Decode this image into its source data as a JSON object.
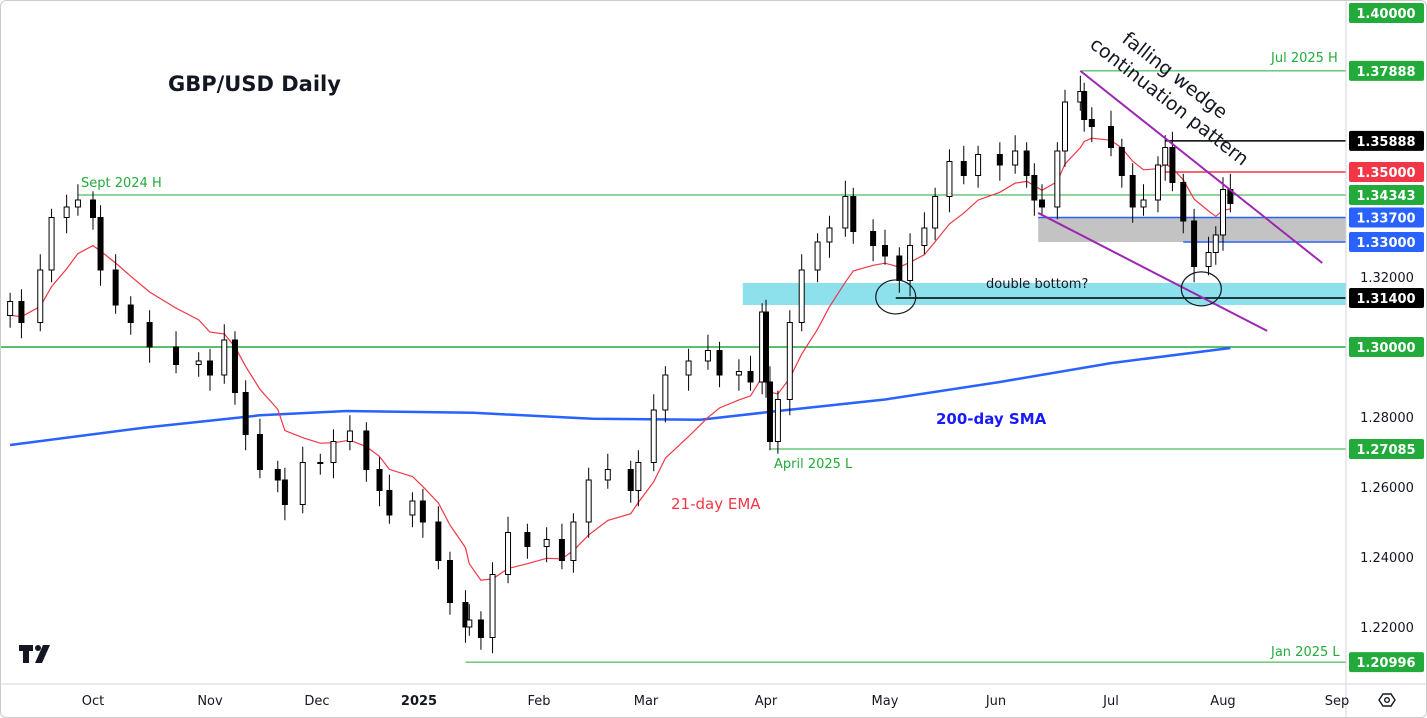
{
  "chart_data": {
    "type": "candlestick",
    "title": "GBP/USD Daily",
    "y_scale": "linear",
    "ylim": [
      1.2,
      1.4
    ],
    "grid": false,
    "y_ticks": [
      "1.32000",
      "1.28000",
      "1.26000",
      "1.24000",
      "1.22000"
    ],
    "x_ticks": [
      {
        "label": "Oct",
        "date": "2024-10-01"
      },
      {
        "label": "Nov",
        "date": "2024-11-01"
      },
      {
        "label": "Dec",
        "date": "2024-12-01"
      },
      {
        "label": "2025",
        "date": "2025-01-01",
        "bold": true
      },
      {
        "label": "Feb",
        "date": "2025-02-01"
      },
      {
        "label": "Mar",
        "date": "2025-03-01"
      },
      {
        "label": "Apr",
        "date": "2025-04-01"
      },
      {
        "label": "May",
        "date": "2025-05-01"
      },
      {
        "label": "Jun",
        "date": "2025-06-01"
      },
      {
        "label": "Jul",
        "date": "2025-07-01"
      },
      {
        "label": "Aug",
        "date": "2025-08-01"
      },
      {
        "label": "Sep",
        "date": "2025-09-01"
      }
    ],
    "closes": [
      [
        "2024-09-09",
        1.313
      ],
      [
        "2024-09-12",
        1.307
      ],
      [
        "2024-09-17",
        1.322
      ],
      [
        "2024-09-20",
        1.337
      ],
      [
        "2024-09-24",
        1.34
      ],
      [
        "2024-09-27",
        1.342
      ],
      [
        "2024-10-01",
        1.337
      ],
      [
        "2024-10-03",
        1.322
      ],
      [
        "2024-10-07",
        1.312
      ],
      [
        "2024-10-11",
        1.307
      ],
      [
        "2024-10-16",
        1.3
      ],
      [
        "2024-10-23",
        1.295
      ],
      [
        "2024-10-29",
        1.296
      ],
      [
        "2024-11-01",
        1.292
      ],
      [
        "2024-11-05",
        1.302
      ],
      [
        "2024-11-08",
        1.287
      ],
      [
        "2024-11-11",
        1.275
      ],
      [
        "2024-11-15",
        1.265
      ],
      [
        "2024-11-20",
        1.262
      ],
      [
        "2024-11-22",
        1.255
      ],
      [
        "2024-11-27",
        1.267
      ],
      [
        "2024-12-02",
        1.267
      ],
      [
        "2024-12-06",
        1.273
      ],
      [
        "2024-12-11",
        1.276
      ],
      [
        "2024-12-16",
        1.265
      ],
      [
        "2024-12-20",
        1.259
      ],
      [
        "2024-12-23",
        1.252
      ],
      [
        "2024-12-30",
        1.256
      ],
      [
        "2025-01-02",
        1.25
      ],
      [
        "2025-01-06",
        1.239
      ],
      [
        "2025-01-09",
        1.227
      ],
      [
        "2025-01-13",
        1.22
      ],
      [
        "2025-01-14",
        1.222
      ],
      [
        "2025-01-17",
        1.217
      ],
      [
        "2025-01-20",
        1.235
      ],
      [
        "2025-01-24",
        1.247
      ],
      [
        "2025-01-29",
        1.243
      ],
      [
        "2025-02-03",
        1.245
      ],
      [
        "2025-02-07",
        1.239
      ],
      [
        "2025-02-10",
        1.25
      ],
      [
        "2025-02-14",
        1.262
      ],
      [
        "2025-02-19",
        1.265
      ],
      [
        "2025-02-25",
        1.259
      ],
      [
        "2025-02-27",
        1.267
      ],
      [
        "2025-03-03",
        1.282
      ],
      [
        "2025-03-06",
        1.292
      ],
      [
        "2025-03-12",
        1.296
      ],
      [
        "2025-03-17",
        1.299
      ],
      [
        "2025-03-20",
        1.292
      ],
      [
        "2025-03-25",
        1.293
      ],
      [
        "2025-03-28",
        1.29
      ],
      [
        "2025-03-31",
        1.31
      ],
      [
        "2025-04-01",
        1.29
      ],
      [
        "2025-04-02",
        1.273
      ],
      [
        "2025-04-04",
        1.285
      ],
      [
        "2025-04-07",
        1.307
      ],
      [
        "2025-04-10",
        1.322
      ],
      [
        "2025-04-14",
        1.33
      ],
      [
        "2025-04-17",
        1.334
      ],
      [
        "2025-04-21",
        1.343
      ],
      [
        "2025-04-23",
        1.333
      ],
      [
        "2025-04-28",
        1.329
      ],
      [
        "2025-05-01",
        1.326
      ],
      [
        "2025-05-05",
        1.319
      ],
      [
        "2025-05-08",
        1.329
      ],
      [
        "2025-05-12",
        1.334
      ],
      [
        "2025-05-15",
        1.343
      ],
      [
        "2025-05-19",
        1.353
      ],
      [
        "2025-05-23",
        1.349
      ],
      [
        "2025-05-27",
        1.355
      ],
      [
        "2025-06-02",
        1.352
      ],
      [
        "2025-06-06",
        1.356
      ],
      [
        "2025-06-09",
        1.349
      ],
      [
        "2025-06-11",
        1.342
      ],
      [
        "2025-06-13",
        1.34
      ],
      [
        "2025-06-17",
        1.356
      ],
      [
        "2025-06-19",
        1.37
      ],
      [
        "2025-06-23",
        1.373
      ],
      [
        "2025-06-24",
        1.365
      ],
      [
        "2025-06-26",
        1.363
      ],
      [
        "2025-07-01",
        1.357
      ],
      [
        "2025-07-04",
        1.349
      ],
      [
        "2025-07-07",
        1.34
      ],
      [
        "2025-07-10",
        1.342
      ],
      [
        "2025-07-14",
        1.352
      ],
      [
        "2025-07-16",
        1.357
      ],
      [
        "2025-07-18",
        1.347
      ],
      [
        "2025-07-21",
        1.336
      ],
      [
        "2025-07-24",
        1.323
      ],
      [
        "2025-07-28",
        1.327
      ],
      [
        "2025-07-30",
        1.332
      ],
      [
        "2025-08-01",
        1.345
      ],
      [
        "2025-08-03",
        1.341
      ]
    ],
    "sma200": [
      [
        "2024-09-09",
        1.272
      ],
      [
        "2024-10-15",
        1.277
      ],
      [
        "2024-11-15",
        1.2805
      ],
      [
        "2024-12-10",
        1.2817
      ],
      [
        "2025-01-15",
        1.2812
      ],
      [
        "2025-02-15",
        1.2795
      ],
      [
        "2025-03-15",
        1.2792
      ],
      [
        "2025-04-04",
        1.2817
      ],
      [
        "2025-05-01",
        1.285
      ],
      [
        "2025-06-02",
        1.29
      ],
      [
        "2025-07-01",
        1.2954
      ],
      [
        "2025-08-03",
        1.2997
      ]
    ],
    "ema_period": 21,
    "colors": {
      "bull": "#ffffff",
      "bear": "#000000",
      "ema": "#f23645",
      "sma": "#2962ff",
      "green": "#22ab3a",
      "wedge": "#9c27b0",
      "red": "#f23645",
      "blue": "#2962ff",
      "gray_zone": "#bdbdbd",
      "cyan_zone": "#80deea"
    },
    "levels": [
      {
        "price": 1.4,
        "label": "1.40000",
        "color": "#22ab3a",
        "from": null
      },
      {
        "price": 1.37888,
        "label": "1.37888",
        "color": "#22ab3a",
        "from": "2025-06-23",
        "note": "Jul 2025 H"
      },
      {
        "price": 1.35888,
        "label": "1.35888",
        "color": "#000000",
        "from": "2025-07-16"
      },
      {
        "price": 1.35,
        "label": "1.35000",
        "color": "#f23645",
        "from": "2025-07-16"
      },
      {
        "price": 1.34343,
        "label": "1.34343",
        "color": "#22ab3a",
        "from": "2024-09-27",
        "note": "Sept 2024 H"
      },
      {
        "price": 1.337,
        "label": "1.33700",
        "color": "#2962ff",
        "from": "2025-06-12"
      },
      {
        "price": 1.33,
        "label": "1.33000",
        "color": "#2962ff",
        "from": "2025-07-21"
      },
      {
        "price": 1.314,
        "label": "1.31400",
        "color": "#000000",
        "from": "2025-05-04"
      },
      {
        "price": 1.3,
        "label": "1.30000",
        "color": "#22ab3a",
        "from": "2024-09-01"
      },
      {
        "price": 1.27085,
        "label": "1.27085",
        "color": "#22ab3a",
        "from": "2025-04-02",
        "note": "April 2025 L"
      },
      {
        "price": 1.20996,
        "label": "1.20996",
        "color": "#22ab3a",
        "from": "2025-01-13",
        "note": "Jan 2025 L"
      }
    ],
    "zones": [
      {
        "from": "2025-06-12",
        "top": 1.337,
        "bottom": 1.33,
        "color": "#bdbdbd"
      },
      {
        "from": "2025-03-26",
        "top": 1.3183,
        "bottom": 1.312,
        "color": "#80deea"
      }
    ],
    "wedge": {
      "upper": [
        [
          "2025-06-23",
          1.3789
        ],
        [
          "2025-08-28",
          1.324
        ]
      ],
      "lower": [
        [
          "2025-06-12",
          1.3383
        ],
        [
          "2025-08-13",
          1.3046
        ]
      ]
    },
    "circles": [
      [
        "2025-05-04",
        1.3143
      ],
      [
        "2025-07-26",
        1.3166
      ]
    ],
    "annotations": {
      "sept_high": "Sept 2024 H",
      "jul_high": "Jul 2025 H",
      "april_low": "April 2025 L",
      "jan_low": "Jan 2025 L",
      "ema_label": "21-day EMA",
      "sma_label": "200-day SMA",
      "double_bottom": "double bottom?",
      "wedge_line1": "falling wedge",
      "wedge_line2": "continuation pattern"
    }
  }
}
